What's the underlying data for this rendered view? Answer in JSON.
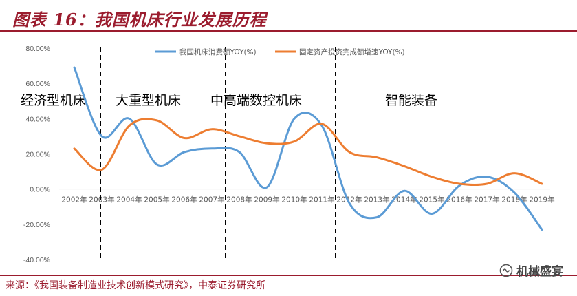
{
  "header": {
    "title": "图表 16：我国机床行业发展历程"
  },
  "source": "来源：《我国装备制造业技术创新模式研究》，中泰证券研究所",
  "watermark": {
    "text": "机械盛宴",
    "icon": "wechat-official-account-icon"
  },
  "colors": {
    "accent": "#9b1c2e",
    "series1": "#5b9bd5",
    "series2": "#ed7d31",
    "axis": "#d9d9d9",
    "tick": "#595959"
  },
  "chart_data": {
    "type": "line",
    "smooth": true,
    "categories": [
      "2002年",
      "2003年",
      "2004年",
      "2005年",
      "2006年",
      "2007年",
      "2008年",
      "2009年",
      "2010年",
      "2011年",
      "2012年",
      "2013年",
      "2014年",
      "2015年",
      "2016年",
      "2017年",
      "2018年",
      "2019年"
    ],
    "series": [
      {
        "name": "我国机床消费额YOY(%)",
        "color": "#5b9bd5",
        "values": [
          69,
          30,
          40,
          14,
          21,
          23,
          21,
          1,
          40,
          36,
          -8,
          -16,
          -1,
          -14,
          2,
          7,
          -2,
          -23
        ]
      },
      {
        "name": "固定资产投资完成额增速YOY(%)",
        "color": "#ed7d31",
        "values": [
          23,
          11,
          36,
          39,
          29,
          34,
          30,
          26,
          27,
          37,
          21,
          18,
          13,
          7,
          3,
          3,
          9,
          3
        ]
      }
    ],
    "ylim": [
      -40,
      80
    ],
    "yticks": [
      "80.00%",
      "60.00%",
      "40.00%",
      "20.00%",
      "0.00%",
      "-20.00%",
      "-40.00%"
    ],
    "ytick_values": [
      80,
      60,
      40,
      20,
      0,
      -20,
      -40
    ],
    "legend": "top-center",
    "grid": false,
    "stages": {
      "dividers_after": [
        1,
        5,
        9
      ],
      "labels": [
        "经济型机床",
        "大重型机床",
        "中高端数控机床",
        "智能装备"
      ]
    }
  }
}
